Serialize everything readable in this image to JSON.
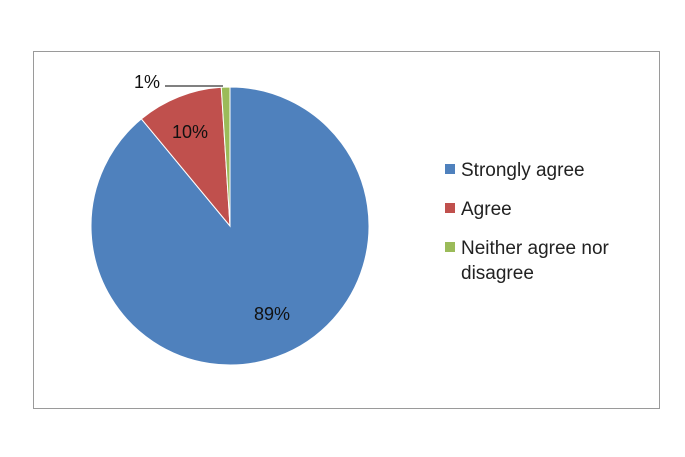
{
  "chart_data": {
    "type": "pie",
    "categories": [
      "Strongly agree",
      "Agree",
      "Neither agree nor disagree"
    ],
    "values": [
      89,
      10,
      1
    ],
    "data_labels": [
      "89%",
      "10%",
      "1%"
    ],
    "colors": [
      "#4f81bd",
      "#c0504d",
      "#9bbb59"
    ],
    "legend": "right"
  }
}
